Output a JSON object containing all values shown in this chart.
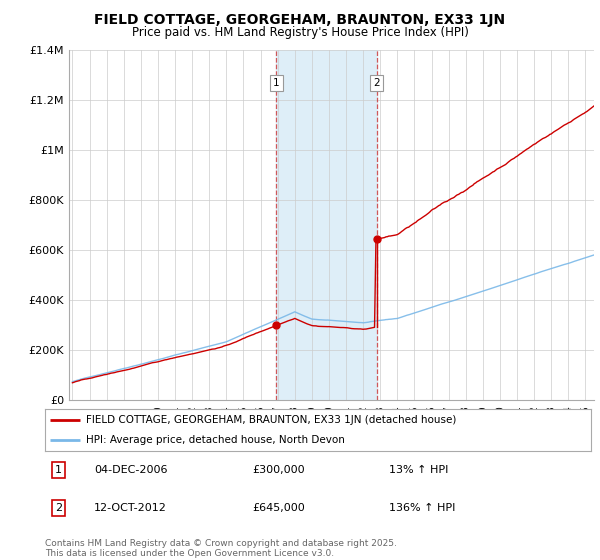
{
  "title": "FIELD COTTAGE, GEORGEHAM, BRAUNTON, EX33 1JN",
  "subtitle": "Price paid vs. HM Land Registry's House Price Index (HPI)",
  "ylim": [
    0,
    1400000
  ],
  "yticks": [
    0,
    200000,
    400000,
    600000,
    800000,
    1000000,
    1200000,
    1400000
  ],
  "ytick_labels": [
    "£0",
    "£200K",
    "£400K",
    "£600K",
    "£800K",
    "£1M",
    "£1.2M",
    "£1.4M"
  ],
  "hpi_color": "#7ab8e8",
  "price_color": "#cc0000",
  "shading_color": "#deeef8",
  "sale1_x": 2006.92,
  "sale1_y": 300000,
  "sale2_x": 2012.79,
  "sale2_y": 645000,
  "sale1": {
    "date": "04-DEC-2006",
    "price": "£300,000",
    "pct": "13% ↑ HPI"
  },
  "sale2": {
    "date": "12-OCT-2012",
    "price": "£645,000",
    "pct": "136% ↑ HPI"
  },
  "legend_label1": "FIELD COTTAGE, GEORGEHAM, BRAUNTON, EX33 1JN (detached house)",
  "legend_label2": "HPI: Average price, detached house, North Devon",
  "footnote": "Contains HM Land Registry data © Crown copyright and database right 2025.\nThis data is licensed under the Open Government Licence v3.0.",
  "background_color": "#ffffff",
  "grid_color": "#cccccc",
  "xmin": 1994.8,
  "xmax": 2025.5
}
